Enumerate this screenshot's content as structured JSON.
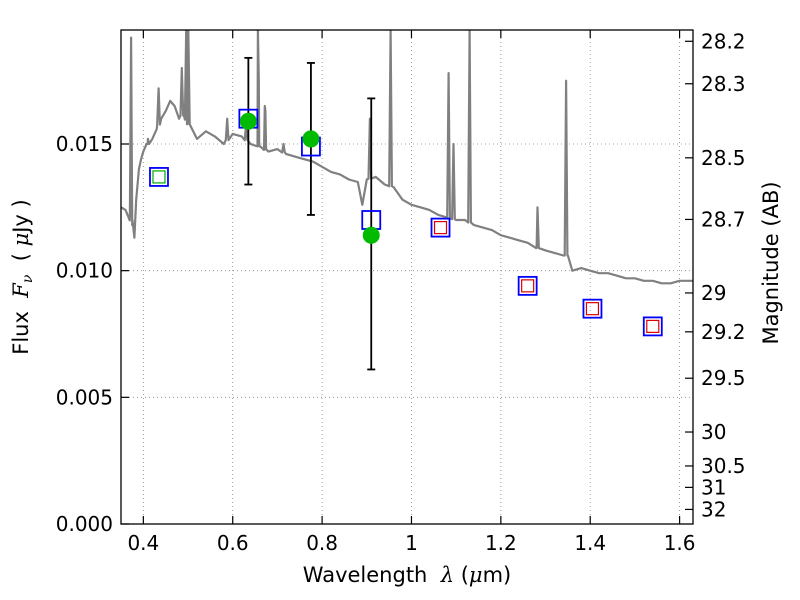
{
  "chart_data": {
    "type": "scatter",
    "xlabel": {
      "prefix": "Wavelength  ",
      "symbol": "λ",
      "unit_open": " (",
      "unit_mu": "μ",
      "unit_rest": "m)"
    },
    "ylabel": {
      "prefix": "Flux  ",
      "symbol": "F",
      "sub": "ν",
      "unit_open": "  ( ",
      "unit_mu": "μ",
      "unit_rest": "Jy )"
    },
    "y2label": "Magnitude (AB)",
    "xlim": [
      0.35,
      1.63
    ],
    "ylim": [
      0.0,
      0.0195
    ],
    "grid": true,
    "x_ticks": [
      {
        "value": 0.4,
        "label": "0.4"
      },
      {
        "value": 0.6,
        "label": "0.6"
      },
      {
        "value": 0.8,
        "label": "0.8"
      },
      {
        "value": 1.0,
        "label": "1"
      },
      {
        "value": 1.2,
        "label": "1.2"
      },
      {
        "value": 1.4,
        "label": "1.4"
      },
      {
        "value": 1.6,
        "label": "1.6"
      }
    ],
    "y_ticks": [
      {
        "value": 0.0,
        "label": "0.000"
      },
      {
        "value": 0.005,
        "label": "0.005"
      },
      {
        "value": 0.01,
        "label": "0.010"
      },
      {
        "value": 0.015,
        "label": "0.015"
      }
    ],
    "mag_ticks": [
      "28.2",
      "28.3",
      "28.5",
      "28.7",
      "29",
      "29.2",
      "29.5",
      "30",
      "30.5",
      "31",
      "32"
    ],
    "colors": {
      "spectrum": "#808080",
      "observed": "#00bb00",
      "model_box": "#0000ff",
      "inner_box_red": "#dd0000",
      "inner_box_green": "#00aa00",
      "errorbar": "#000000",
      "grid": "#888888"
    },
    "series": [
      {
        "kind": "model_spectrum",
        "points": [
          [
            0.35,
            0.0125
          ],
          [
            0.36,
            0.0124
          ],
          [
            0.37,
            0.0122
          ],
          [
            0.375,
            0.0118
          ],
          [
            0.38,
            0.0113
          ],
          [
            0.384,
            0.0128
          ],
          [
            0.39,
            0.014
          ],
          [
            0.395,
            0.0144
          ],
          [
            0.4,
            0.0147
          ],
          [
            0.41,
            0.015
          ],
          [
            0.42,
            0.0152
          ],
          [
            0.43,
            0.0156
          ],
          [
            0.44,
            0.016
          ],
          [
            0.45,
            0.0163
          ],
          [
            0.46,
            0.0167
          ],
          [
            0.47,
            0.0165
          ],
          [
            0.48,
            0.016
          ],
          [
            0.49,
            0.0162
          ],
          [
            0.5,
            0.0158
          ],
          [
            0.52,
            0.0152
          ],
          [
            0.54,
            0.0155
          ],
          [
            0.56,
            0.0153
          ],
          [
            0.58,
            0.015
          ],
          [
            0.6,
            0.0154
          ],
          [
            0.62,
            0.0153
          ],
          [
            0.64,
            0.015
          ],
          [
            0.66,
            0.0149
          ],
          [
            0.68,
            0.0147
          ],
          [
            0.7,
            0.0148
          ],
          [
            0.72,
            0.0146
          ],
          [
            0.74,
            0.0145
          ],
          [
            0.76,
            0.0144
          ],
          [
            0.78,
            0.0143
          ],
          [
            0.8,
            0.0141
          ],
          [
            0.82,
            0.0139
          ],
          [
            0.84,
            0.0138
          ],
          [
            0.86,
            0.0136
          ],
          [
            0.88,
            0.0135
          ],
          [
            0.89,
            0.0126
          ],
          [
            0.9,
            0.0136
          ],
          [
            0.92,
            0.0137
          ],
          [
            0.94,
            0.0134
          ],
          [
            0.96,
            0.0133
          ],
          [
            0.98,
            0.0128
          ],
          [
            1.0,
            0.0126
          ],
          [
            1.02,
            0.0125
          ],
          [
            1.04,
            0.0124
          ],
          [
            1.06,
            0.0122
          ],
          [
            1.08,
            0.0121
          ],
          [
            1.1,
            0.012
          ],
          [
            1.12,
            0.012
          ],
          [
            1.14,
            0.0118
          ],
          [
            1.16,
            0.0117
          ],
          [
            1.18,
            0.0116
          ],
          [
            1.2,
            0.0114
          ],
          [
            1.22,
            0.0113
          ],
          [
            1.24,
            0.0112
          ],
          [
            1.26,
            0.0111
          ],
          [
            1.28,
            0.0109
          ],
          [
            1.3,
            0.0108
          ],
          [
            1.32,
            0.0107
          ],
          [
            1.34,
            0.0106
          ],
          [
            1.35,
            0.0106
          ],
          [
            1.36,
            0.01
          ],
          [
            1.38,
            0.0101
          ],
          [
            1.4,
            0.01
          ],
          [
            1.42,
            0.0099
          ],
          [
            1.44,
            0.0099
          ],
          [
            1.46,
            0.0098
          ],
          [
            1.48,
            0.0097
          ],
          [
            1.5,
            0.0097
          ],
          [
            1.52,
            0.0096
          ],
          [
            1.54,
            0.0096
          ],
          [
            1.56,
            0.0095
          ],
          [
            1.58,
            0.0095
          ],
          [
            1.6,
            0.0096
          ],
          [
            1.63,
            0.0096
          ]
        ],
        "emission_lines": [
          [
            0.3727,
            0.0192
          ],
          [
            0.4102,
            0.0152
          ],
          [
            0.4341,
            0.0172
          ],
          [
            0.4861,
            0.018
          ],
          [
            0.4959,
            0.0195
          ],
          [
            0.5007,
            0.0195
          ],
          [
            0.5876,
            0.016
          ],
          [
            0.63,
            0.0158
          ],
          [
            0.6563,
            0.0195
          ],
          [
            0.6584,
            0.0175
          ],
          [
            0.6717,
            0.0165
          ],
          [
            0.6731,
            0.0163
          ],
          [
            0.7136,
            0.015
          ],
          [
            0.9069,
            0.016
          ],
          [
            0.9532,
            0.0195
          ],
          [
            1.083,
            0.0178
          ],
          [
            1.094,
            0.015
          ],
          [
            1.13,
            0.0195
          ],
          [
            1.282,
            0.0125
          ],
          [
            1.346,
            0.0175
          ]
        ]
      },
      {
        "kind": "observed_photometry",
        "points": [
          {
            "x": 0.635,
            "y": 0.0159,
            "err": [
              0.0134,
              0.0184
            ]
          },
          {
            "x": 0.775,
            "y": 0.0152,
            "err": [
              0.0122,
              0.0182
            ]
          },
          {
            "x": 0.91,
            "y": 0.0114,
            "err": [
              0.0061,
              0.0168
            ]
          }
        ]
      },
      {
        "kind": "model_photometry",
        "points": [
          {
            "x": 0.435,
            "y": 0.0137,
            "inner": "green"
          },
          {
            "x": 0.635,
            "y": 0.016,
            "inner": "none"
          },
          {
            "x": 0.775,
            "y": 0.0149,
            "inner": "none"
          },
          {
            "x": 0.91,
            "y": 0.012,
            "inner": "none"
          },
          {
            "x": 1.065,
            "y": 0.0117,
            "inner": "red"
          },
          {
            "x": 1.26,
            "y": 0.0094,
            "inner": "red"
          },
          {
            "x": 1.405,
            "y": 0.0085,
            "inner": "red"
          },
          {
            "x": 1.54,
            "y": 0.0078,
            "inner": "red"
          }
        ]
      }
    ]
  }
}
